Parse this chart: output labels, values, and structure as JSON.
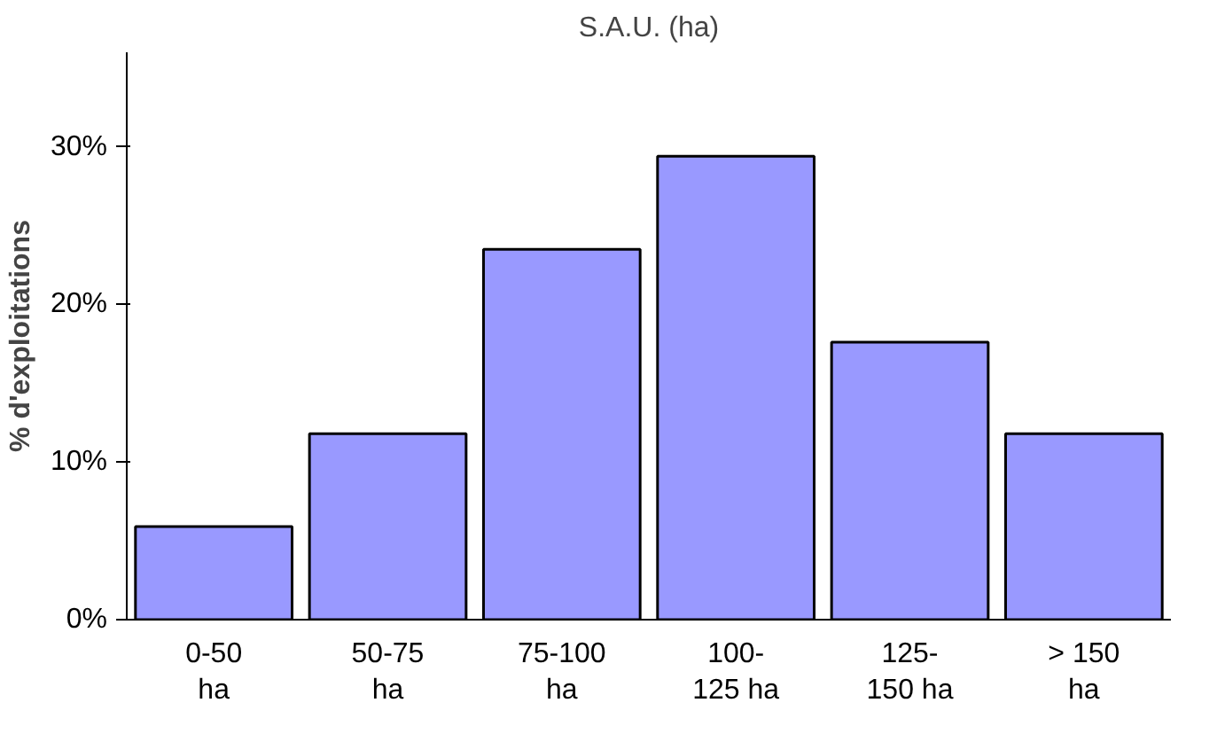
{
  "chart_data": {
    "type": "bar",
    "title": "S.A.U. (ha)",
    "ylabel": "% d'exploitations",
    "categories": [
      "0-50 ha",
      "50-75 ha",
      "75-100 ha",
      "100-125 ha",
      "125-150 ha",
      "> 150 ha"
    ],
    "values": [
      5.9,
      11.8,
      23.5,
      29.4,
      17.6,
      11.8
    ],
    "color": "#9999ff",
    "ylim": [
      0,
      36
    ],
    "yticks": [
      {
        "value": 0,
        "label": "0%"
      },
      {
        "value": 10,
        "label": "10%"
      },
      {
        "value": 20,
        "label": "20%"
      },
      {
        "value": 30,
        "label": "30%"
      }
    ],
    "grid": false
  }
}
